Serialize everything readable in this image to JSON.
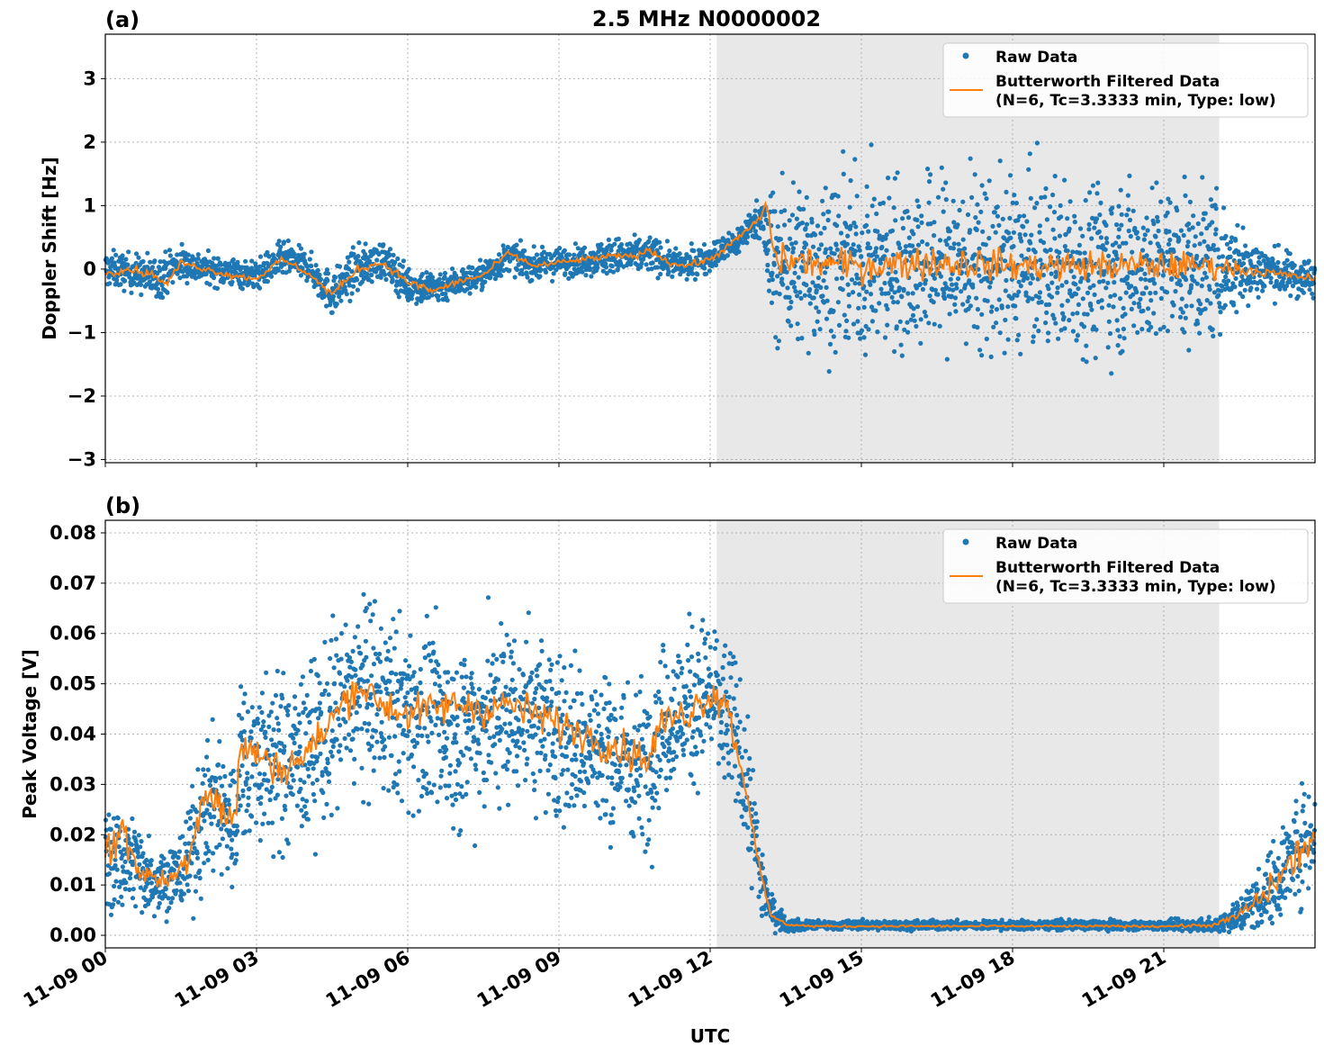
{
  "title": "2.5 MHz N0000002",
  "xlabel": "UTC",
  "x_tick_labels": [
    "11-09 00",
    "11-09 03",
    "11-09 06",
    "11-09 09",
    "11-09 12",
    "11-09 15",
    "11-09 18",
    "11-09 21"
  ],
  "colors": {
    "raw": "#1f77b4",
    "filtered": "#ff7f0e",
    "shade": "#e8e8e8"
  },
  "chart_data": [
    {
      "type": "scatter",
      "panel_label": "(a)",
      "ylabel": "Doppler Shift [Hz]",
      "xlim": [
        0,
        24
      ],
      "ylim": [
        -3.05,
        3.7
      ],
      "x_unit": "hours UTC on 11-09",
      "y_ticks": [
        3,
        2,
        1,
        0,
        -1,
        -2,
        -3
      ],
      "y_tick_labels": [
        "3",
        "2",
        "1",
        "0",
        "−1",
        "−2",
        "−3"
      ],
      "shaded_span": [
        12.13,
        22.1
      ],
      "grid": true,
      "legend_position": "top-right",
      "legend": [
        "Raw Data",
        "Butterworth Filtered Data",
        "(N=6, Tc=3.3333 min, Type: low)"
      ],
      "series": [
        {
          "name": "Raw Data",
          "kind": "scatter",
          "x": [
            0,
            0.5,
            1,
            1.5,
            2,
            2.5,
            3,
            3.5,
            4,
            4.5,
            5,
            5.5,
            6,
            6.5,
            7,
            7.5,
            8,
            8.5,
            9,
            9.5,
            10,
            10.5,
            10.8,
            11.2,
            11.5,
            12,
            12.5,
            13,
            13.2,
            14,
            15,
            16,
            17,
            18,
            19,
            20,
            21,
            22,
            22.5,
            23,
            23.5,
            24
          ],
          "y_center": [
            0,
            -0.05,
            -0.15,
            0.1,
            0,
            -0.05,
            -0.1,
            0.15,
            0.05,
            -0.4,
            0,
            0.15,
            -0.25,
            -0.3,
            -0.2,
            -0.1,
            0.2,
            0.05,
            0.1,
            0.15,
            0.2,
            0.2,
            0.25,
            0.1,
            0.05,
            0.2,
            0.4,
            0.85,
            0.1,
            0.1,
            0.05,
            0.1,
            0.1,
            0.05,
            0.05,
            0.05,
            0.05,
            0.05,
            0,
            0,
            -0.1,
            -0.15
          ],
          "y_spread": [
            0.25,
            0.25,
            0.3,
            0.25,
            0.2,
            0.2,
            0.2,
            0.25,
            0.2,
            0.3,
            0.3,
            0.25,
            0.25,
            0.25,
            0.2,
            0.2,
            0.2,
            0.2,
            0.2,
            0.2,
            0.25,
            0.25,
            0.25,
            0.2,
            0.2,
            0.2,
            0.2,
            0.25,
            1.1,
            1.15,
            1.2,
            1.2,
            1.2,
            1.2,
            1.15,
            1.15,
            1.1,
            1.0,
            0.6,
            0.35,
            0.3,
            0.25
          ]
        },
        {
          "name": "Butterworth Filtered Data",
          "kind": "line",
          "x": [
            0,
            0.5,
            1,
            1.2,
            1.5,
            2,
            2.5,
            3,
            3.5,
            4,
            4.5,
            5,
            5.5,
            6,
            6.5,
            7,
            7.5,
            8,
            8.5,
            9,
            9.5,
            10,
            10.5,
            10.8,
            11.2,
            11.5,
            12,
            12.5,
            13,
            13.1,
            13.3,
            14,
            15,
            16,
            17,
            18,
            19,
            20,
            21,
            22,
            22.5,
            23,
            23.5,
            24
          ],
          "y": [
            -0.05,
            0.0,
            -0.1,
            -0.25,
            0.1,
            0.0,
            -0.1,
            -0.15,
            0.15,
            -0.05,
            -0.4,
            0.0,
            0.1,
            -0.2,
            -0.35,
            -0.2,
            -0.1,
            0.25,
            0.05,
            0.1,
            0.15,
            0.2,
            0.2,
            0.3,
            0.1,
            0.05,
            0.15,
            0.45,
            0.8,
            1.05,
            0.15,
            0.1,
            0.05,
            0.1,
            0.1,
            0.05,
            0.05,
            0.05,
            0.05,
            0.05,
            0.0,
            -0.05,
            -0.1,
            -0.15
          ],
          "noise": [
            0.05,
            0.05,
            0.05,
            0.05,
            0.05,
            0.04,
            0.04,
            0.04,
            0.04,
            0.04,
            0.05,
            0.05,
            0.05,
            0.05,
            0.05,
            0.04,
            0.04,
            0.04,
            0.04,
            0.04,
            0.04,
            0.04,
            0.04,
            0.04,
            0.04,
            0.04,
            0.04,
            0.04,
            0.05,
            0.05,
            0.2,
            0.2,
            0.22,
            0.22,
            0.22,
            0.2,
            0.2,
            0.2,
            0.2,
            0.15,
            0.1,
            0.06,
            0.05,
            0.05
          ]
        }
      ]
    },
    {
      "type": "scatter",
      "panel_label": "(b)",
      "ylabel": "Peak Voltage [V]",
      "xlim": [
        0,
        24
      ],
      "ylim": [
        -0.0025,
        0.0825
      ],
      "x_unit": "hours UTC on 11-09",
      "y_ticks": [
        0.08,
        0.07,
        0.06,
        0.05,
        0.04,
        0.03,
        0.02,
        0.01,
        0.0
      ],
      "y_tick_labels": [
        "0.08",
        "0.07",
        "0.06",
        "0.05",
        "0.04",
        "0.03",
        "0.02",
        "0.01",
        "0.00"
      ],
      "shaded_span": [
        12.13,
        22.1
      ],
      "grid": true,
      "legend_position": "top-right",
      "legend": [
        "Raw Data",
        "Butterworth Filtered Data",
        "(N=6, Tc=3.3333 min, Type: low)"
      ],
      "series": [
        {
          "name": "Raw Data",
          "kind": "scatter",
          "x": [
            0,
            0.5,
            1,
            1.5,
            1.8,
            2.2,
            2.6,
            2.65,
            3,
            3.5,
            4,
            4.5,
            5,
            5.5,
            6,
            6.5,
            7,
            7.5,
            8,
            8.5,
            9,
            9.5,
            10,
            10.5,
            10.8,
            11.0,
            11.5,
            12,
            12.5,
            12.8,
            13.0,
            13.2,
            13.5,
            14,
            15,
            16,
            17,
            18,
            19,
            20,
            21,
            22,
            22.5,
            23,
            23.5,
            24
          ],
          "y_center": [
            0.015,
            0.015,
            0.011,
            0.012,
            0.02,
            0.028,
            0.02,
            0.035,
            0.035,
            0.034,
            0.036,
            0.043,
            0.048,
            0.046,
            0.044,
            0.042,
            0.04,
            0.043,
            0.045,
            0.044,
            0.04,
            0.038,
            0.036,
            0.034,
            0.035,
            0.042,
            0.045,
            0.048,
            0.04,
            0.025,
            0.012,
            0.005,
            0.002,
            0.002,
            0.002,
            0.002,
            0.002,
            0.002,
            0.002,
            0.002,
            0.002,
            0.002,
            0.004,
            0.008,
            0.015,
            0.022
          ],
          "y_spread": [
            0.01,
            0.009,
            0.006,
            0.007,
            0.011,
            0.013,
            0.012,
            0.014,
            0.015,
            0.015,
            0.015,
            0.016,
            0.017,
            0.016,
            0.016,
            0.016,
            0.016,
            0.016,
            0.016,
            0.016,
            0.015,
            0.015,
            0.014,
            0.014,
            0.014,
            0.013,
            0.014,
            0.014,
            0.013,
            0.011,
            0.008,
            0.003,
            0.0012,
            0.0008,
            0.0008,
            0.0008,
            0.0008,
            0.0008,
            0.0008,
            0.0008,
            0.0008,
            0.0012,
            0.003,
            0.006,
            0.009,
            0.01
          ]
        },
        {
          "name": "Butterworth Filtered Data",
          "kind": "line",
          "x": [
            0,
            0.3,
            0.6,
            1,
            1.3,
            1.6,
            1.8,
            2.0,
            2.3,
            2.6,
            2.65,
            3,
            3.5,
            4,
            4.5,
            5,
            5.5,
            6,
            6.5,
            7,
            7.5,
            8,
            8.5,
            9,
            9.5,
            10,
            10.5,
            10.8,
            11.0,
            11.5,
            12,
            12.3,
            12.6,
            12.8,
            13.0,
            13.2,
            13.5,
            14,
            15,
            16,
            17,
            18,
            19,
            20,
            21,
            22,
            22.5,
            23,
            23.5,
            24
          ],
          "y": [
            0.015,
            0.022,
            0.014,
            0.011,
            0.011,
            0.015,
            0.022,
            0.03,
            0.025,
            0.022,
            0.038,
            0.036,
            0.033,
            0.036,
            0.043,
            0.05,
            0.046,
            0.044,
            0.045,
            0.046,
            0.045,
            0.046,
            0.044,
            0.042,
            0.04,
            0.038,
            0.036,
            0.035,
            0.042,
            0.044,
            0.048,
            0.047,
            0.034,
            0.025,
            0.012,
            0.004,
            0.0022,
            0.0018,
            0.0018,
            0.0018,
            0.0018,
            0.0018,
            0.0018,
            0.0018,
            0.0018,
            0.002,
            0.004,
            0.008,
            0.014,
            0.02
          ],
          "noise": [
            0.004,
            0.004,
            0.003,
            0.002,
            0.002,
            0.003,
            0.004,
            0.004,
            0.004,
            0.003,
            0.003,
            0.003,
            0.003,
            0.003,
            0.003,
            0.003,
            0.003,
            0.003,
            0.003,
            0.003,
            0.003,
            0.003,
            0.003,
            0.003,
            0.003,
            0.003,
            0.003,
            0.003,
            0.003,
            0.003,
            0.003,
            0.003,
            0.002,
            0.002,
            0.001,
            0.0005,
            0.0002,
            0.0002,
            0.0002,
            0.0002,
            0.0002,
            0.0002,
            0.0002,
            0.0002,
            0.0002,
            0.0003,
            0.001,
            0.002,
            0.003,
            0.003
          ]
        }
      ]
    }
  ]
}
